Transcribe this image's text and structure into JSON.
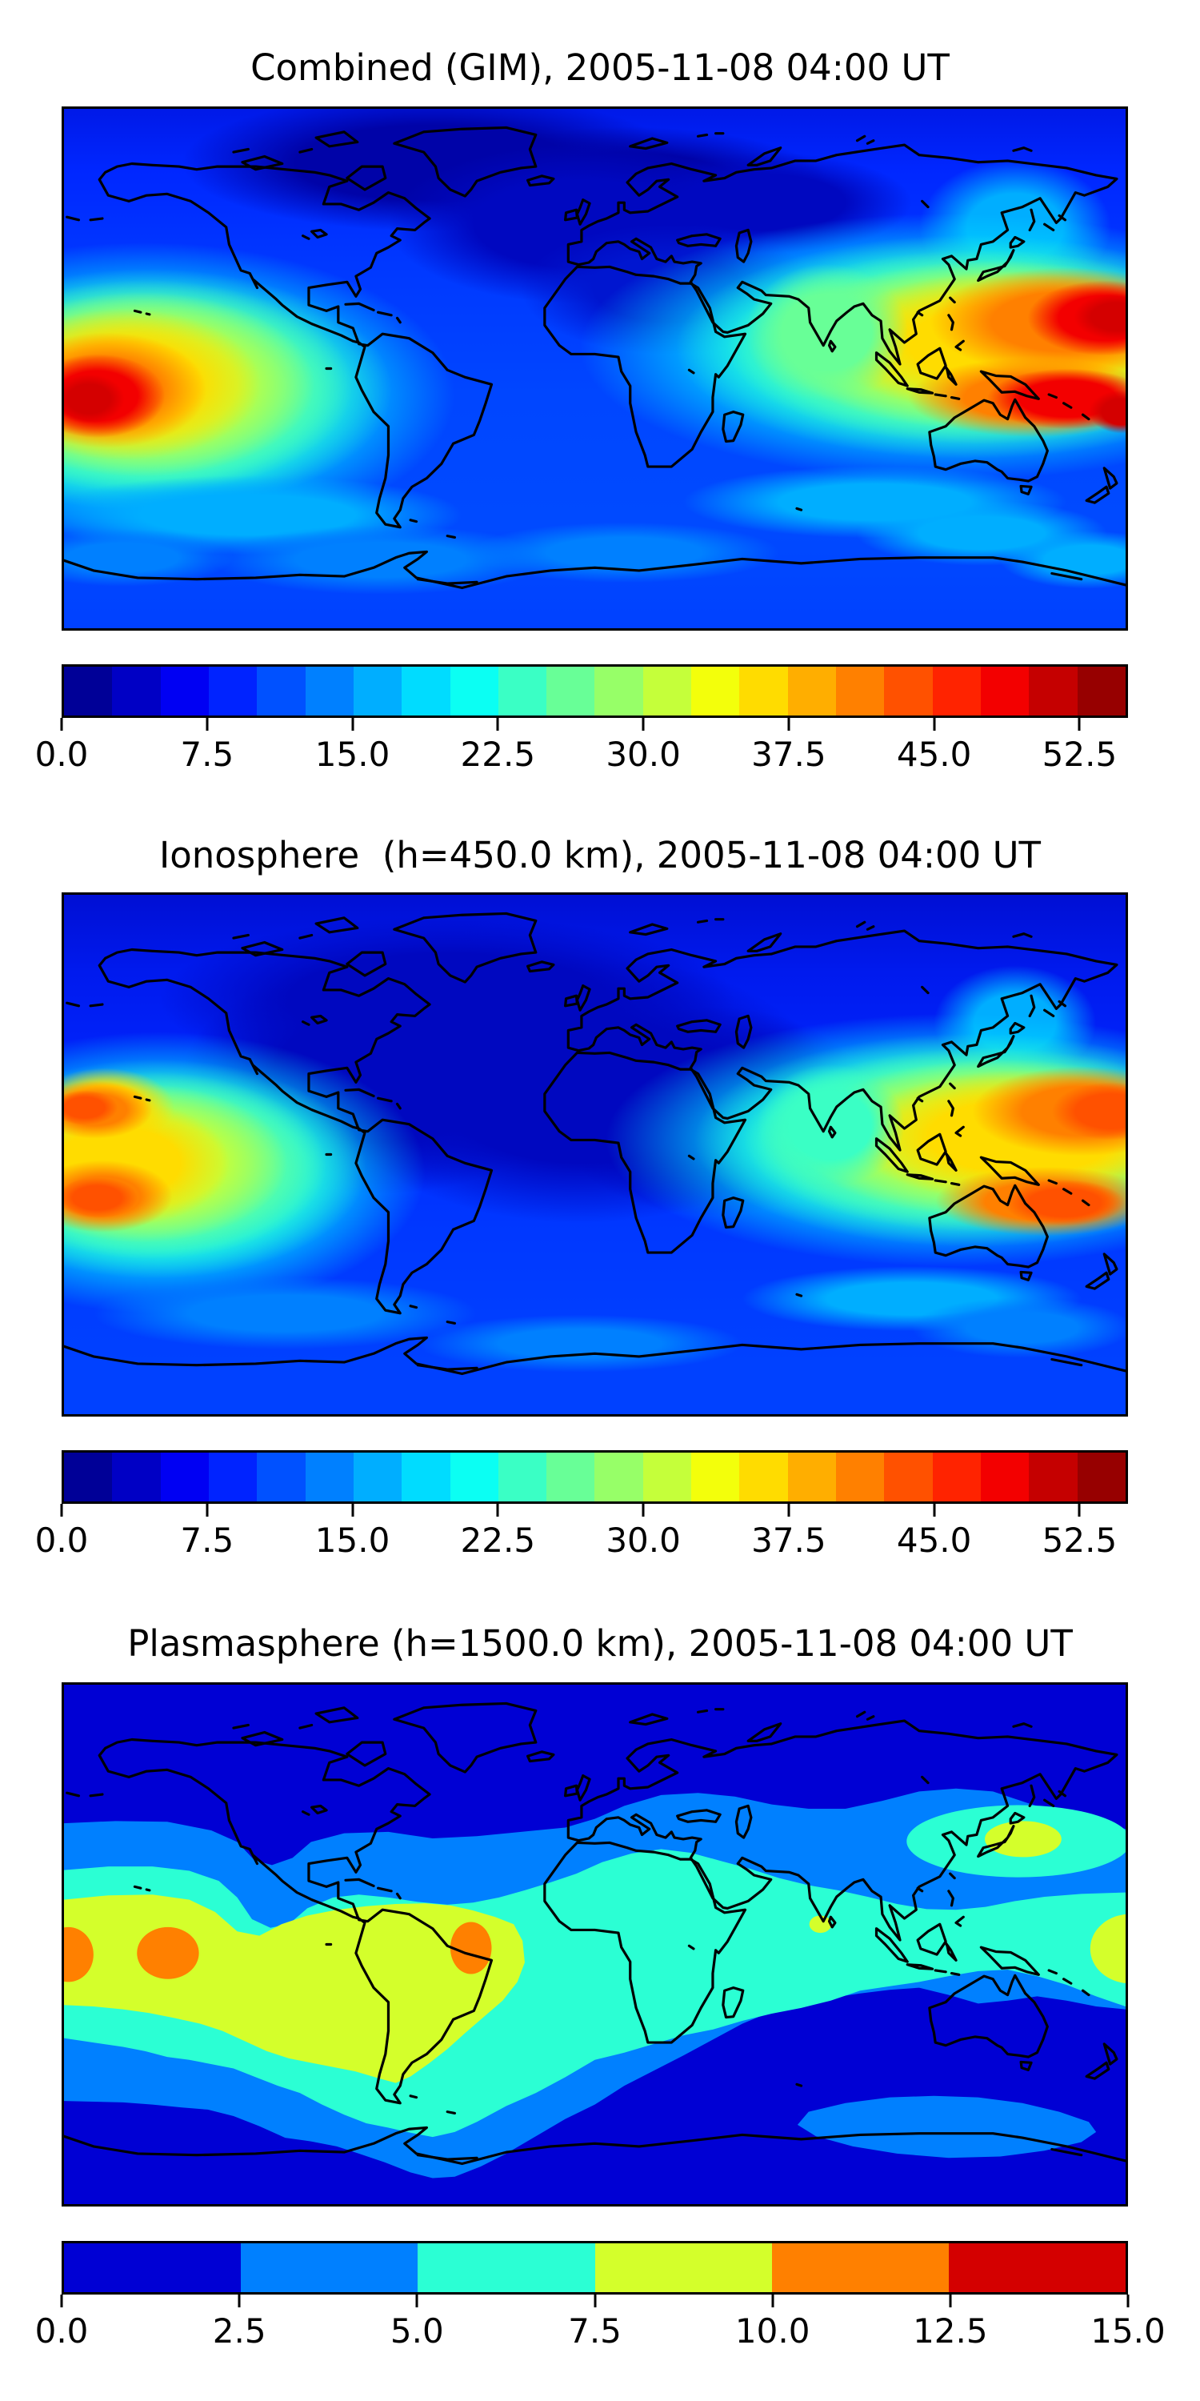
{
  "figure": {
    "background": "#ffffff",
    "coastline_color": "#000000",
    "datetime": "2005-11-08 04:00 UT"
  },
  "panels": [
    {
      "id": "combined",
      "title": "Combined (GIM), 2005-11-08 04:00 UT",
      "colorbar": {
        "min": 0,
        "max": 55,
        "tick_values": [
          0,
          7.5,
          15,
          22.5,
          30,
          37.5,
          45,
          52.5
        ],
        "tick_labels": [
          "0.0",
          "7.5",
          "15.0",
          "22.5",
          "30.0",
          "37.5",
          "45.0",
          "52.5"
        ],
        "band_colors": [
          "#000097",
          "#0000c5",
          "#0000f3",
          "#0023ff",
          "#0051ff",
          "#0080ff",
          "#00aeff",
          "#00dcff",
          "#0bfff3",
          "#3affc5",
          "#68ff97",
          "#97ff68",
          "#c5ff3a",
          "#f3ff0b",
          "#ffdc00",
          "#ffae00",
          "#ff8000",
          "#ff5100",
          "#ff2300",
          "#f30000",
          "#c50000",
          "#970000"
        ]
      }
    },
    {
      "id": "ionosphere",
      "title": "Ionosphere  (h=450.0 km), 2005-11-08 04:00 UT",
      "colorbar": {
        "min": 0,
        "max": 55,
        "tick_values": [
          0,
          7.5,
          15,
          22.5,
          30,
          37.5,
          45,
          52.5
        ],
        "tick_labels": [
          "0.0",
          "7.5",
          "15.0",
          "22.5",
          "30.0",
          "37.5",
          "45.0",
          "52.5"
        ],
        "band_colors": [
          "#000097",
          "#0000c5",
          "#0000f3",
          "#0023ff",
          "#0051ff",
          "#0080ff",
          "#00aeff",
          "#00dcff",
          "#0bfff3",
          "#3affc5",
          "#68ff97",
          "#97ff68",
          "#c5ff3a",
          "#f3ff0b",
          "#ffdc00",
          "#ffae00",
          "#ff8000",
          "#ff5100",
          "#ff2300",
          "#f30000",
          "#c50000",
          "#970000"
        ]
      }
    },
    {
      "id": "plasmasphere",
      "title": "Plasmasphere (h=1500.0 km), 2005-11-08 04:00 UT",
      "colorbar": {
        "min": 0,
        "max": 15,
        "tick_values": [
          0,
          2.5,
          5,
          7.5,
          10,
          12.5,
          15
        ],
        "tick_labels": [
          "0.0",
          "2.5",
          "5.0",
          "7.5",
          "10.0",
          "12.5",
          "15.0"
        ],
        "band_colors": [
          "#0000d4",
          "#0080ff",
          "#2bffd4",
          "#d4ff2b",
          "#ff8000",
          "#d40000"
        ]
      }
    }
  ],
  "chart_data": [
    {
      "type": "heatmap",
      "title": "Combined (GIM), 2005-11-08 04:00 UT",
      "datetime": "2005-11-08 04:00 UT",
      "colormap": "jet",
      "levels": {
        "min": 0,
        "max": 55,
        "step": 2.5
      },
      "colorbar_ticks": [
        0,
        7.5,
        15,
        22.5,
        30,
        37.5,
        45,
        52.5
      ],
      "extent": {
        "lon": [
          -180,
          180
        ],
        "lat": [
          -90,
          90
        ]
      },
      "legend_position": "below",
      "grid": false,
      "features": [
        {
          "name": "west-Pacific / SE-Asia equatorial anomaly maximum",
          "approx_lon": 160,
          "approx_lat": 15,
          "approx_value": 52
        },
        {
          "name": "second western-Pacific crest over New Guinea / Melanesia",
          "approx_lon": 155,
          "approx_lat": -8,
          "approx_value": 50
        },
        {
          "name": "east-Pacific maximum at left map edge",
          "approx_lon": -172,
          "approx_lat": -12,
          "approx_value": 48
        },
        {
          "name": "yellow-green enhancement over India / Indian Ocean",
          "approx_lon": 78,
          "approx_lat": 10,
          "approx_value": 28
        },
        {
          "name": "high-latitude minimum over northern Canada, Greenland and Scandinavia",
          "approx_lon": -60,
          "approx_lat": 70,
          "approx_value": 3
        },
        {
          "name": "background mid/low-latitude ocean values",
          "approx_value": 10
        }
      ]
    },
    {
      "type": "heatmap",
      "title": "Ionosphere  (h=450.0 km), 2005-11-08 04:00 UT",
      "datetime": "2005-11-08 04:00 UT",
      "colormap": "jet",
      "levels": {
        "min": 0,
        "max": 55,
        "step": 2.5
      },
      "colorbar_ticks": [
        0,
        7.5,
        15,
        22.5,
        30,
        37.5,
        45,
        52.5
      ],
      "extent": {
        "lon": [
          -180,
          180
        ],
        "lat": [
          -90,
          90
        ]
      },
      "legend_position": "below",
      "grid": false,
      "features": [
        {
          "name": "west-Pacific anomaly maximum (orange)",
          "approx_lon": 165,
          "approx_lat": 15,
          "approx_value": 43
        },
        {
          "name": "second crest over New Guinea (orange)",
          "approx_lon": 155,
          "approx_lat": -8,
          "approx_value": 42
        },
        {
          "name": "east-Pacific maximum at left map edge, two lobes",
          "approx_lon": -172,
          "approx_lat": -14,
          "approx_value": 41
        },
        {
          "name": "dark minimum over North America, Atlantic and Africa",
          "approx_lon": -20,
          "approx_lat": 25,
          "approx_value": 2.5
        },
        {
          "name": "background mid/low-latitude ocean values",
          "approx_value": 8
        }
      ]
    },
    {
      "type": "heatmap",
      "title": "Plasmasphere (h=1500.0 km), 2005-11-08 04:00 UT",
      "datetime": "2005-11-08 04:00 UT",
      "colormap": "jet",
      "levels": {
        "min": 0,
        "max": 15,
        "step": 2.5
      },
      "colorbar_ticks": [
        0,
        2.5,
        5,
        7.5,
        10,
        12.5,
        15
      ],
      "extent": {
        "lon": [
          -180,
          180
        ],
        "lat": [
          -90,
          90
        ]
      },
      "legend_position": "below",
      "grid": false,
      "features": [
        {
          "name": "equatorial plasmaspheric band (5-7.5) girdling the globe",
          "approx_lat": 0,
          "approx_value": 6
        },
        {
          "name": "yellow-green region (7.5-10) over South America and SE Pacific",
          "approx_lon": -60,
          "approx_lat": -10,
          "approx_value": 9
        },
        {
          "name": "orange spot at left map edge",
          "approx_lon": -178,
          "approx_lat": -3,
          "approx_value": 11
        },
        {
          "name": "orange spot in central-east Pacific",
          "approx_lon": -145,
          "approx_lat": -3,
          "approx_value": 11
        },
        {
          "name": "orange spot over eastern Brazil coast",
          "approx_lon": -40,
          "approx_lat": -2,
          "approx_value": 11
        },
        {
          "name": "yellow-green patch south of Japan",
          "approx_lon": 145,
          "approx_lat": 36,
          "approx_value": 8.5
        },
        {
          "name": "yellow-green patch at right map edge",
          "approx_lon": 180,
          "approx_lat": -1,
          "approx_value": 8.5
        },
        {
          "name": "small yellow-green dot near western India",
          "approx_lon": 76,
          "approx_lat": 7,
          "approx_value": 8
        },
        {
          "name": "light-blue patch over East Antarctica",
          "approx_lon": 120,
          "approx_lat": -65,
          "approx_value": 3.5
        },
        {
          "name": "polar background minimum",
          "approx_value": 1.5
        }
      ]
    }
  ]
}
